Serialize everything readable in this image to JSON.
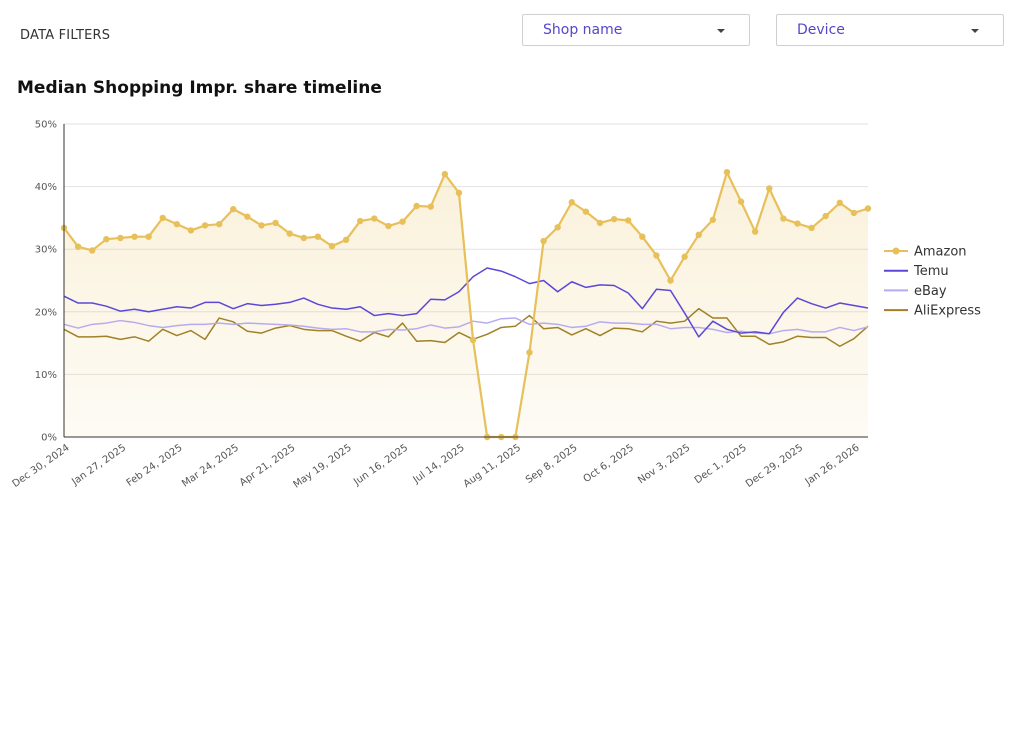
{
  "filters": {
    "label": "DATA FILTERS",
    "shop_placeholder": "Shop name",
    "device_placeholder": "Device"
  },
  "chart_title": "Median Shopping Impr. share timeline",
  "chart_data": {
    "type": "line",
    "title": "Median Shopping Impr. share timeline",
    "xlabel": "",
    "ylabel": "",
    "ylim": [
      0,
      50
    ],
    "y_ticks": [
      "0%",
      "10%",
      "20%",
      "30%",
      "40%",
      "50%"
    ],
    "x_tick_labels": [
      "Dec 30, 2024",
      "Jan 27, 2025",
      "Feb 24, 2025",
      "Mar 24, 2025",
      "Apr 21, 2025",
      "May 19, 2025",
      "Jun 16, 2025",
      "Jul 14, 2025",
      "Aug 11, 2025",
      "Sep 8, 2025",
      "Oct 6, 2025",
      "Nov 3, 2025",
      "Dec 1, 2025",
      "Dec 29, 2025",
      "Jan 26, 2026"
    ],
    "grid": true,
    "legend_position": "right",
    "series": [
      {
        "name": "Amazon",
        "color": "#e8c05a",
        "values": [
          33.4,
          30.4,
          29.8,
          31.6,
          31.8,
          32.0,
          32.0,
          35.0,
          34.0,
          33.0,
          33.8,
          34.0,
          36.4,
          35.2,
          33.8,
          34.2,
          32.5,
          31.8,
          32.0,
          30.5,
          31.5,
          34.5,
          34.9,
          33.7,
          34.4,
          36.9,
          36.8,
          42.0,
          39.0,
          15.5,
          0.0,
          0.0,
          0.0,
          13.5,
          31.3,
          33.5,
          37.5,
          36.0,
          34.2,
          34.8,
          34.6,
          32.0,
          29.0,
          25.0,
          28.8,
          32.3,
          34.7,
          42.3,
          37.6,
          32.8,
          39.7,
          34.9,
          34.1,
          33.4,
          35.3,
          37.4,
          35.8,
          36.5
        ]
      },
      {
        "name": "Temu",
        "color": "#5b48d6",
        "values": [
          22.5,
          21.4,
          21.4,
          20.9,
          20.1,
          20.4,
          20.0,
          20.4,
          20.8,
          20.6,
          21.5,
          21.5,
          20.5,
          21.3,
          21.0,
          21.2,
          21.5,
          22.2,
          21.2,
          20.6,
          20.4,
          20.8,
          19.4,
          19.7,
          19.4,
          19.7,
          22.0,
          21.9,
          23.2,
          25.6,
          27.0,
          26.5,
          25.6,
          24.5,
          25.0,
          23.2,
          24.8,
          23.9,
          24.3,
          24.2,
          23.0,
          20.5,
          23.6,
          23.4,
          19.8,
          16.0,
          18.5,
          17.2,
          16.6,
          16.8,
          16.5,
          19.9,
          22.2,
          21.3,
          20.6,
          21.4,
          21.0,
          20.6
        ]
      },
      {
        "name": "eBay",
        "color": "#b7abf0",
        "values": [
          18.0,
          17.4,
          18.0,
          18.2,
          18.6,
          18.3,
          17.8,
          17.5,
          17.8,
          18.0,
          18.0,
          18.2,
          18.0,
          18.2,
          18.1,
          18.0,
          17.9,
          17.7,
          17.4,
          17.2,
          17.3,
          16.8,
          16.8,
          17.2,
          17.1,
          17.3,
          17.9,
          17.4,
          17.6,
          18.5,
          18.2,
          18.9,
          19.0,
          18.0,
          18.2,
          18.0,
          17.5,
          17.7,
          18.4,
          18.2,
          18.2,
          18.0,
          18.0,
          17.3,
          17.5,
          17.5,
          17.2,
          16.7,
          16.9,
          16.6,
          16.5,
          17.0,
          17.2,
          16.8,
          16.8,
          17.5,
          17.0,
          17.6
        ]
      },
      {
        "name": "AliExpress",
        "color": "#a08127",
        "values": [
          17.2,
          16.0,
          16.0,
          16.1,
          15.6,
          16.0,
          15.3,
          17.2,
          16.2,
          17.0,
          15.6,
          19.0,
          18.4,
          16.9,
          16.6,
          17.4,
          17.8,
          17.2,
          17.0,
          17.0,
          16.1,
          15.3,
          16.7,
          16.0,
          18.2,
          15.3,
          15.4,
          15.1,
          16.7,
          15.6,
          16.4,
          17.5,
          17.7,
          19.4,
          17.3,
          17.5,
          16.3,
          17.3,
          16.2,
          17.4,
          17.3,
          16.8,
          18.5,
          18.2,
          18.5,
          20.5,
          19.0,
          19.0,
          16.1,
          16.1,
          14.8,
          15.2,
          16.1,
          15.9,
          15.9,
          14.5,
          15.7,
          17.7
        ]
      }
    ]
  }
}
